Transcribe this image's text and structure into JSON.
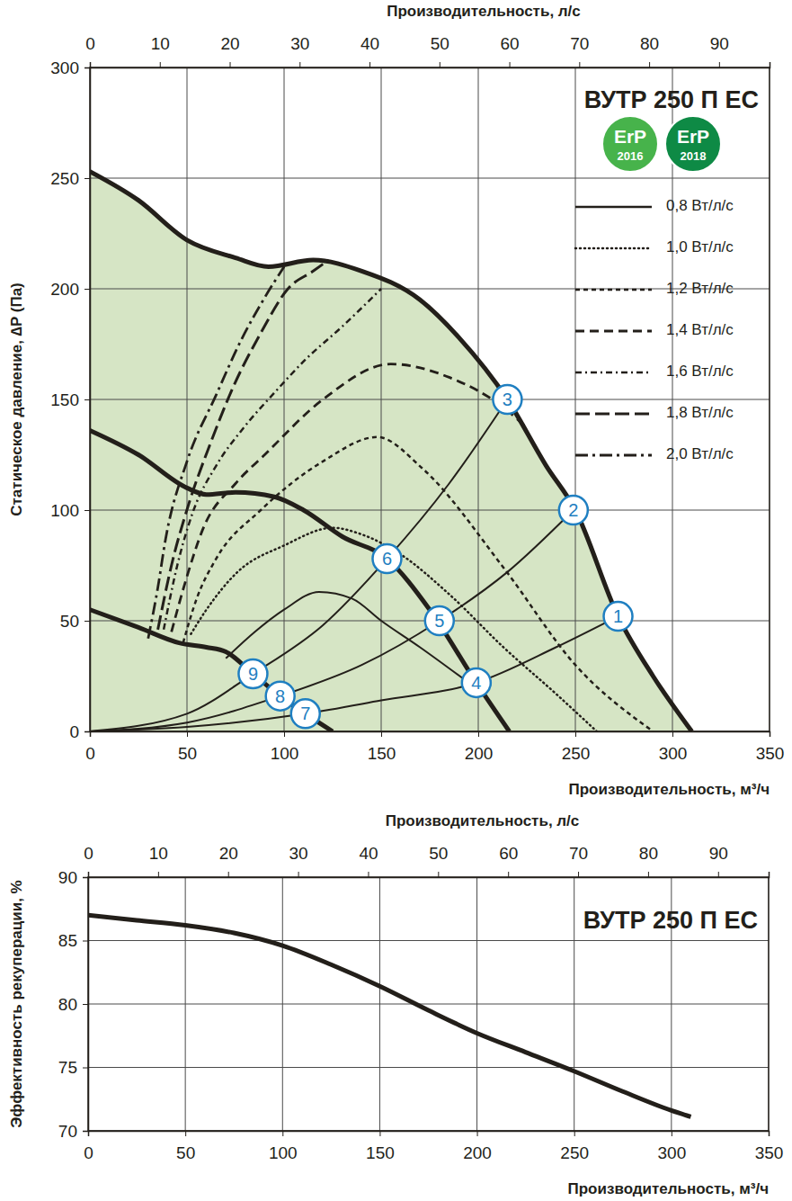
{
  "chart_data": [
    {
      "type": "line",
      "title": "ВУТР 250 П ЕС",
      "x_label": "Производительность, м³/ч",
      "x2_label": "Производительность, л/с",
      "y_label": "Статическое давление, ∆P (Па)",
      "xlim": [
        0,
        350
      ],
      "xticks": [
        0,
        50,
        100,
        150,
        200,
        250,
        300,
        350
      ],
      "x2lim": [
        0,
        97.22
      ],
      "x2ticks": [
        0,
        10,
        20,
        30,
        40,
        50,
        60,
        70,
        80,
        90
      ],
      "ylim": [
        0,
        300
      ],
      "yticks": [
        0,
        50,
        100,
        150,
        200,
        250,
        300
      ],
      "grid": true,
      "legend": "upper right",
      "badges": [
        {
          "label": "ErP",
          "year": "2016",
          "color": "#47b34b"
        },
        {
          "label": "ErP",
          "year": "2018",
          "color": "#0e8a45"
        }
      ],
      "series": [
        {
          "type": "area",
          "line_style": "bold",
          "color": "#231f1a",
          "x": [
            0,
            25,
            50,
            75,
            92,
            115,
            140,
            170,
            190,
            215,
            235,
            250,
            272,
            290,
            310
          ],
          "values": [
            253,
            240,
            222,
            214,
            210,
            213,
            208,
            195,
            178,
            150,
            120,
            100,
            52,
            25,
            0
          ]
        },
        {
          "type": "line",
          "line_style": "bold",
          "color": "#231f1a",
          "x": [
            0,
            25,
            50,
            60,
            75,
            95,
            110,
            130,
            153,
            175,
            199,
            216
          ],
          "values": [
            136,
            125,
            110,
            107,
            108,
            106,
            100,
            88,
            78,
            55,
            22,
            0
          ]
        },
        {
          "type": "line",
          "line_style": "bold",
          "color": "#231f1a",
          "x": [
            0,
            25,
            46,
            60,
            70,
            84,
            98,
            111,
            125
          ],
          "values": [
            55,
            47,
            40,
            38,
            36,
            26,
            16,
            8,
            0
          ]
        },
        {
          "type": "line",
          "line_style": "solid",
          "color": "#231f1a",
          "x": [
            0,
            50,
            111,
            150,
            199,
            240,
            272
          ],
          "values": [
            0,
            2,
            8,
            14,
            22,
            38,
            52
          ]
        },
        {
          "type": "line",
          "line_style": "solid",
          "color": "#231f1a",
          "x": [
            0,
            50,
            98,
            140,
            180,
            215,
            249
          ],
          "values": [
            0,
            4,
            16,
            30,
            50,
            72,
            100
          ]
        },
        {
          "type": "line",
          "line_style": "solid",
          "color": "#231f1a",
          "x": [
            0,
            50,
            84,
            120,
            153,
            185,
            215
          ],
          "values": [
            0,
            8,
            26,
            48,
            78,
            112,
            150
          ]
        },
        {
          "type": "line",
          "name": "0,8 Вт/л/с",
          "line_style": "solid",
          "color": "#231f1a",
          "x": [
            70,
            85,
            100,
            118,
            135,
            150,
            170,
            195
          ],
          "values": [
            33,
            45,
            55,
            63,
            60,
            50,
            38,
            22
          ]
        },
        {
          "type": "line",
          "name": "1,0 Вт/л/с",
          "line_style": "dotted",
          "color": "#231f1a",
          "x": [
            52,
            60,
            76,
            100,
            125,
            140,
            160,
            185,
            213,
            240,
            261
          ],
          "values": [
            44,
            55,
            72,
            84,
            92,
            89,
            80,
            62,
            38,
            17,
            0
          ]
        },
        {
          "type": "line",
          "name": "1,2 Вт/л/с",
          "line_style": "dashed",
          "color": "#231f1a",
          "x": [
            48,
            55,
            65,
            88,
            120,
            148,
            171,
            213,
            250,
            290
          ],
          "values": [
            40,
            60,
            78,
            100,
            122,
            133,
            119,
            74,
            30,
            0
          ]
        },
        {
          "type": "line",
          "name": "1,4 Вт/л/с",
          "line_style": "long-dashed",
          "color": "#231f1a",
          "x": [
            42,
            50,
            58,
            75,
            90,
            120,
            155,
            185,
            215,
            224
          ],
          "values": [
            45,
            70,
            91,
            112,
            125,
            150,
            166,
            160,
            145,
            138
          ]
        },
        {
          "type": "line",
          "name": "1,6 Вт/л/с",
          "line_style": "dash-dot",
          "color": "#231f1a",
          "x": [
            38,
            45,
            53,
            65,
            79,
            95,
            111,
            130,
            150
          ],
          "values": [
            46,
            75,
            99,
            120,
            137,
            153,
            168,
            183,
            200
          ]
        },
        {
          "type": "line",
          "name": "1,8 Вт/л/с",
          "line_style": "long-dash",
          "color": "#231f1a",
          "x": [
            35,
            42,
            51,
            62,
            74,
            88,
            102,
            115,
            123
          ],
          "values": [
            46,
            75,
            103,
            130,
            156,
            180,
            200,
            208,
            213
          ]
        },
        {
          "type": "line",
          "name": "2,0 Вт/л/с",
          "line_style": "long-dash-dot",
          "color": "#231f1a",
          "x": [
            30,
            35,
            39,
            50,
            65,
            78,
            90,
            100
          ],
          "values": [
            42,
            65,
            87,
            122,
            152,
            177,
            196,
            210
          ]
        }
      ],
      "annotations": [
        {
          "x": 272,
          "y": 52,
          "label": "1"
        },
        {
          "x": 249,
          "y": 100,
          "label": "2"
        },
        {
          "x": 215,
          "y": 150,
          "label": "3"
        },
        {
          "x": 199,
          "y": 22,
          "label": "4"
        },
        {
          "x": 180,
          "y": 50,
          "label": "5"
        },
        {
          "x": 153,
          "y": 78,
          "label": "6"
        },
        {
          "x": 111,
          "y": 8,
          "label": "7"
        },
        {
          "x": 98,
          "y": 16,
          "label": "8"
        },
        {
          "x": 84,
          "y": 26,
          "label": "9"
        }
      ]
    },
    {
      "type": "line",
      "title": "ВУТР 250 П ЕС",
      "x_label": "Производительность, м³/ч",
      "x2_label": "Производительность, л/с",
      "y_label": "Эффективность рекуперации, %",
      "xlim": [
        0,
        350
      ],
      "xticks": [
        0,
        50,
        100,
        150,
        200,
        250,
        300,
        350
      ],
      "x2lim": [
        0,
        97.22
      ],
      "x2ticks": [
        0,
        10,
        20,
        30,
        40,
        50,
        60,
        70,
        80,
        90
      ],
      "ylim": [
        70,
        90
      ],
      "yticks": [
        70,
        75,
        80,
        85,
        90
      ],
      "grid": true,
      "series": [
        {
          "type": "line",
          "line_style": "bold",
          "color": "#231f1a",
          "x": [
            0,
            25,
            50,
            75,
            100,
            125,
            150,
            175,
            200,
            225,
            250,
            275,
            300,
            310
          ],
          "values": [
            87,
            86.6,
            86.2,
            85.6,
            84.6,
            83.1,
            81.4,
            79.5,
            77.7,
            76.2,
            74.7,
            73.1,
            71.6,
            71.1
          ]
        }
      ]
    }
  ]
}
